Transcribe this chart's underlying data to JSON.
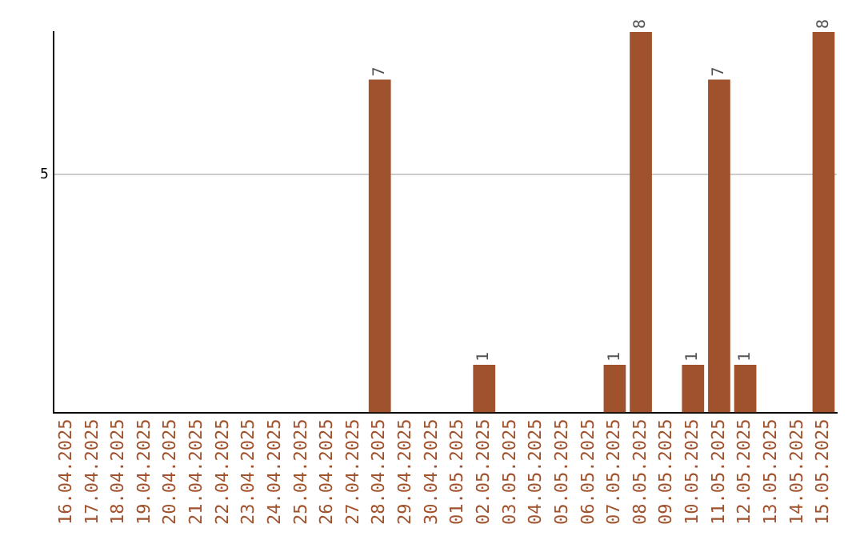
{
  "chart_data": {
    "type": "bar",
    "categories": [
      "16.04.2025",
      "17.04.2025",
      "18.04.2025",
      "19.04.2025",
      "20.04.2025",
      "21.04.2025",
      "22.04.2025",
      "23.04.2025",
      "24.04.2025",
      "25.04.2025",
      "26.04.2025",
      "27.04.2025",
      "28.04.2025",
      "29.04.2025",
      "30.04.2025",
      "01.05.2025",
      "02.05.2025",
      "03.05.2025",
      "04.05.2025",
      "05.05.2025",
      "06.05.2025",
      "07.05.2025",
      "08.05.2025",
      "09.05.2025",
      "10.05.2025",
      "11.05.2025",
      "12.05.2025",
      "13.05.2025",
      "14.05.2025",
      "15.05.2025"
    ],
    "values": [
      null,
      null,
      null,
      null,
      null,
      null,
      null,
      null,
      null,
      null,
      null,
      null,
      7,
      null,
      null,
      null,
      1,
      null,
      null,
      null,
      null,
      1,
      8,
      null,
      1,
      7,
      1,
      null,
      null,
      8
    ],
    "color": "#a0522d",
    "ylim": [
      0,
      8
    ],
    "yticks": [
      5
    ],
    "grid": "y",
    "data_labels": true
  }
}
